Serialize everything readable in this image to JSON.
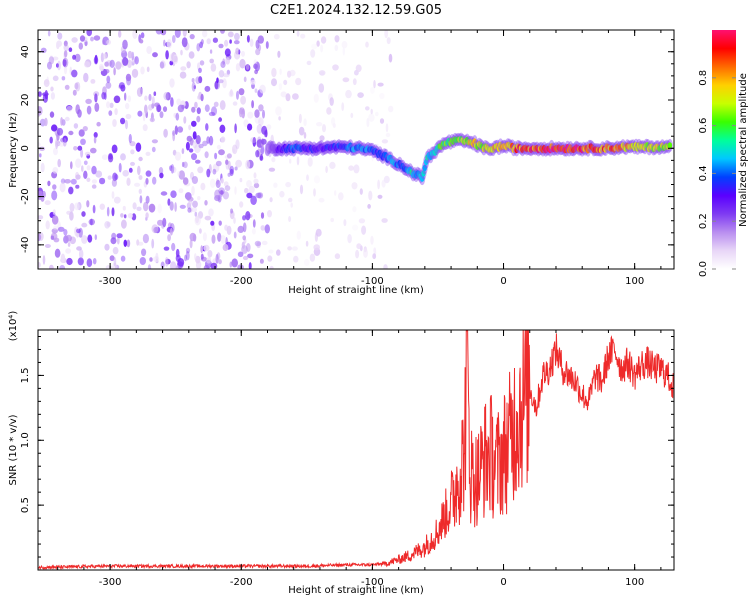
{
  "figure": {
    "title": "C2E1.2024.132.12.59.G05",
    "xlabel": "Height of straight line (km)"
  },
  "colors": {
    "snr_line": "#ee2a2a",
    "frame": "#000000",
    "colormap": [
      "#ffffff",
      "#e8d6f7",
      "#b98ef0",
      "#7f3bf2",
      "#5a00ff",
      "#0040ff",
      "#00c8ff",
      "#00ff9a",
      "#39ff00",
      "#c8ff00",
      "#ffd000",
      "#ff6a00",
      "#ff0000",
      "#ff1070"
    ]
  },
  "chart_data": [
    {
      "type": "heatmap",
      "xlabel": "Height of straight line (km)",
      "ylabel": "Frequency (Hz)",
      "xlim": [
        -355,
        130
      ],
      "ylim": [
        -50,
        49
      ],
      "xticks": [
        -300,
        -200,
        -100,
        0,
        100
      ],
      "yticks": [
        -40,
        -20,
        0,
        20,
        40
      ],
      "colorbar": {
        "label": "Normalized spectral amplitude",
        "range": [
          0,
          1
        ],
        "ticks": [
          0.0,
          0.2,
          0.4,
          0.6,
          0.8
        ],
        "tick_labels": [
          "0.0",
          "0.2",
          "0.4",
          "0.6",
          "0.8"
        ]
      },
      "signal_track": [
        {
          "x": -180,
          "y": 0,
          "amp": 0.15
        },
        {
          "x": -170,
          "y": 0,
          "amp": 0.3
        },
        {
          "x": -160,
          "y": 0,
          "amp": 0.4
        },
        {
          "x": -150,
          "y": 0,
          "amp": 0.35
        },
        {
          "x": -140,
          "y": 0,
          "amp": 0.3
        },
        {
          "x": -130,
          "y": 0.5,
          "amp": 0.35
        },
        {
          "x": -120,
          "y": 0.5,
          "amp": 0.4
        },
        {
          "x": -110,
          "y": 0,
          "amp": 0.45
        },
        {
          "x": -100,
          "y": -1,
          "amp": 0.4
        },
        {
          "x": -92,
          "y": -3,
          "amp": 0.35
        },
        {
          "x": -85,
          "y": -5,
          "amp": 0.45
        },
        {
          "x": -78,
          "y": -7,
          "amp": 0.4
        },
        {
          "x": -70,
          "y": -10,
          "amp": 0.5
        },
        {
          "x": -62,
          "y": -12,
          "amp": 0.45
        },
        {
          "x": -58,
          "y": -4,
          "amp": 0.5
        },
        {
          "x": -52,
          "y": -1,
          "amp": 0.55
        },
        {
          "x": -45,
          "y": 2,
          "amp": 0.6
        },
        {
          "x": -38,
          "y": 3,
          "amp": 0.65
        },
        {
          "x": -30,
          "y": 3,
          "amp": 0.7
        },
        {
          "x": -22,
          "y": 2,
          "amp": 0.75
        },
        {
          "x": -15,
          "y": 0,
          "amp": 0.7
        },
        {
          "x": -8,
          "y": 0,
          "amp": 0.75
        },
        {
          "x": 0,
          "y": 1,
          "amp": 0.8
        },
        {
          "x": 10,
          "y": 0,
          "amp": 0.85
        },
        {
          "x": 20,
          "y": 0,
          "amp": 0.9
        },
        {
          "x": 30,
          "y": 0,
          "amp": 0.9
        },
        {
          "x": 40,
          "y": 0,
          "amp": 0.95
        },
        {
          "x": 50,
          "y": 0,
          "amp": 0.95
        },
        {
          "x": 60,
          "y": 0,
          "amp": 0.9
        },
        {
          "x": 70,
          "y": 0,
          "amp": 0.9
        },
        {
          "x": 80,
          "y": 0,
          "amp": 0.85
        },
        {
          "x": 90,
          "y": 0.5,
          "amp": 0.8
        },
        {
          "x": 100,
          "y": 0.5,
          "amp": 0.75
        },
        {
          "x": 110,
          "y": 0.5,
          "amp": 0.7
        },
        {
          "x": 120,
          "y": 0.5,
          "amp": 0.7
        },
        {
          "x": 128,
          "y": 0.5,
          "amp": 0.65
        }
      ],
      "background_noise": [
        {
          "x_from": -355,
          "x_to": -180,
          "amp": 0.2
        },
        {
          "x_from": -180,
          "x_to": -85,
          "amp": 0.08
        }
      ]
    },
    {
      "type": "line",
      "xlabel": "Height of straight line (km)",
      "ylabel": "SNR (10 * v/v)",
      "y_multiplier_label": "(x10⁴)",
      "xlim": [
        -355,
        130
      ],
      "ylim": [
        0,
        1.85
      ],
      "xticks": [
        -300,
        -200,
        -100,
        0,
        100
      ],
      "yticks": [
        0.5,
        1.0,
        1.5
      ],
      "ytick_labels": [
        "0.5",
        "1.0",
        "1.5"
      ],
      "series": [
        {
          "x": [
            -355,
            -300,
            -250,
            -200,
            -150,
            -120,
            -100,
            -90,
            -80,
            -70,
            -60,
            -50,
            -45,
            -40,
            -35,
            -30,
            -28,
            -25,
            -20,
            -15,
            -10,
            -5,
            0,
            5,
            10,
            15,
            20,
            25,
            30,
            35,
            40,
            45,
            50,
            55,
            60,
            65,
            70,
            75,
            80,
            85,
            90,
            95,
            100,
            105,
            110,
            115,
            120,
            125,
            130
          ],
          "y": [
            0.02,
            0.03,
            0.03,
            0.03,
            0.03,
            0.04,
            0.04,
            0.05,
            0.08,
            0.12,
            0.18,
            0.3,
            0.42,
            0.5,
            0.7,
            0.9,
            1.6,
            0.75,
            0.7,
            0.85,
            0.9,
            0.8,
            0.9,
            1.0,
            1.2,
            1.3,
            1.4,
            1.25,
            1.5,
            1.55,
            1.7,
            1.55,
            1.5,
            1.45,
            1.35,
            1.3,
            1.5,
            1.45,
            1.65,
            1.7,
            1.55,
            1.6,
            1.5,
            1.58,
            1.6,
            1.55,
            1.55,
            1.5,
            1.4
          ]
        }
      ]
    }
  ]
}
